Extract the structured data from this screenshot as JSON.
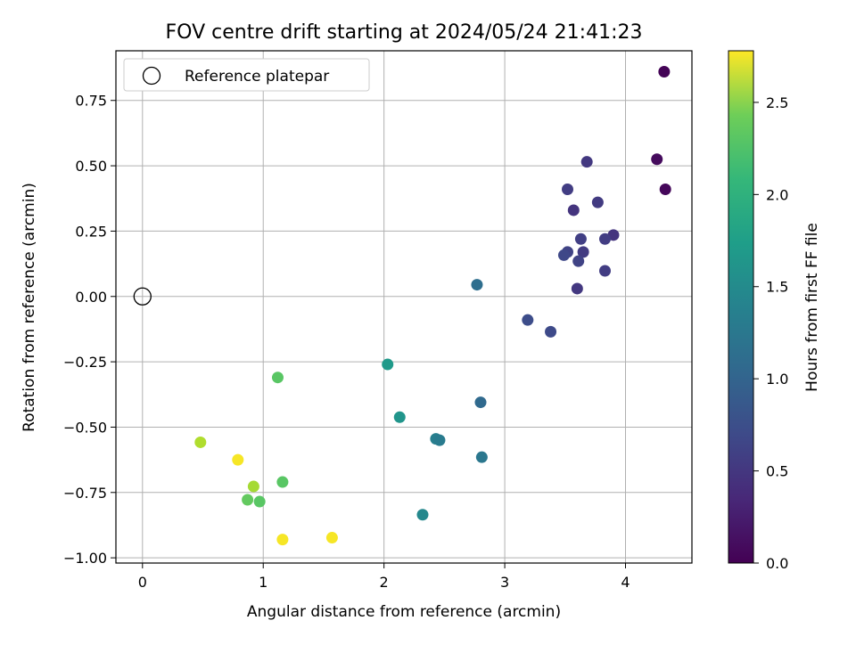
{
  "chart_data": {
    "type": "scatter",
    "title": "FOV centre drift starting at 2024/05/24 21:41:23",
    "xlabel": "Angular distance from reference (arcmin)",
    "ylabel": "Rotation from reference (arcmin)",
    "xlim": [
      -0.22,
      4.55
    ],
    "ylim": [
      -1.02,
      0.94
    ],
    "xticks": [
      "0",
      "1",
      "2",
      "3",
      "4"
    ],
    "yticks": [
      "−1.00",
      "−0.75",
      "−0.50",
      "−0.25",
      "0.00",
      "0.25",
      "0.50",
      "0.75"
    ],
    "grid": true,
    "legend": {
      "position": "top-left",
      "label": "Reference platepar"
    },
    "reference": {
      "x": 0,
      "y": 0
    },
    "colorbar": {
      "label": "Hours from first FF file",
      "range": [
        0,
        2.78
      ],
      "ticks": [
        "0.0",
        "0.5",
        "1.0",
        "1.5",
        "2.0",
        "2.5"
      ],
      "colormap": "viridis"
    },
    "points": [
      {
        "x": 4.32,
        "y": 0.86,
        "c": 0.02
      },
      {
        "x": 4.26,
        "y": 0.525,
        "c": 0.08
      },
      {
        "x": 4.33,
        "y": 0.41,
        "c": 0.05
      },
      {
        "x": 3.68,
        "y": 0.515,
        "c": 0.45
      },
      {
        "x": 3.52,
        "y": 0.41,
        "c": 0.5
      },
      {
        "x": 3.77,
        "y": 0.36,
        "c": 0.48
      },
      {
        "x": 3.57,
        "y": 0.33,
        "c": 0.42
      },
      {
        "x": 3.9,
        "y": 0.235,
        "c": 0.42
      },
      {
        "x": 3.63,
        "y": 0.22,
        "c": 0.52
      },
      {
        "x": 3.83,
        "y": 0.22,
        "c": 0.5
      },
      {
        "x": 3.65,
        "y": 0.17,
        "c": 0.48
      },
      {
        "x": 3.52,
        "y": 0.17,
        "c": 0.55
      },
      {
        "x": 3.49,
        "y": 0.158,
        "c": 0.6
      },
      {
        "x": 3.61,
        "y": 0.135,
        "c": 0.55
      },
      {
        "x": 3.83,
        "y": 0.098,
        "c": 0.5
      },
      {
        "x": 3.6,
        "y": 0.03,
        "c": 0.45
      },
      {
        "x": 2.77,
        "y": 0.045,
        "c": 1.0
      },
      {
        "x": 3.19,
        "y": -0.09,
        "c": 0.65
      },
      {
        "x": 3.38,
        "y": -0.135,
        "c": 0.62
      },
      {
        "x": 2.03,
        "y": -0.26,
        "c": 1.5
      },
      {
        "x": 2.8,
        "y": -0.405,
        "c": 0.95
      },
      {
        "x": 2.13,
        "y": -0.462,
        "c": 1.45
      },
      {
        "x": 2.43,
        "y": -0.545,
        "c": 1.2
      },
      {
        "x": 2.46,
        "y": -0.55,
        "c": 1.15
      },
      {
        "x": 2.81,
        "y": -0.615,
        "c": 1.1
      },
      {
        "x": 2.32,
        "y": -0.835,
        "c": 1.3
      },
      {
        "x": 1.12,
        "y": -0.31,
        "c": 2.05
      },
      {
        "x": 1.16,
        "y": -0.71,
        "c": 2.05
      },
      {
        "x": 0.48,
        "y": -0.558,
        "c": 2.45
      },
      {
        "x": 0.79,
        "y": -0.625,
        "c": 2.75
      },
      {
        "x": 0.92,
        "y": -0.727,
        "c": 2.4
      },
      {
        "x": 0.87,
        "y": -0.778,
        "c": 2.1
      },
      {
        "x": 0.97,
        "y": -0.785,
        "c": 2.05
      },
      {
        "x": 1.16,
        "y": -0.93,
        "c": 2.75
      },
      {
        "x": 1.57,
        "y": -0.923,
        "c": 2.75
      }
    ]
  }
}
